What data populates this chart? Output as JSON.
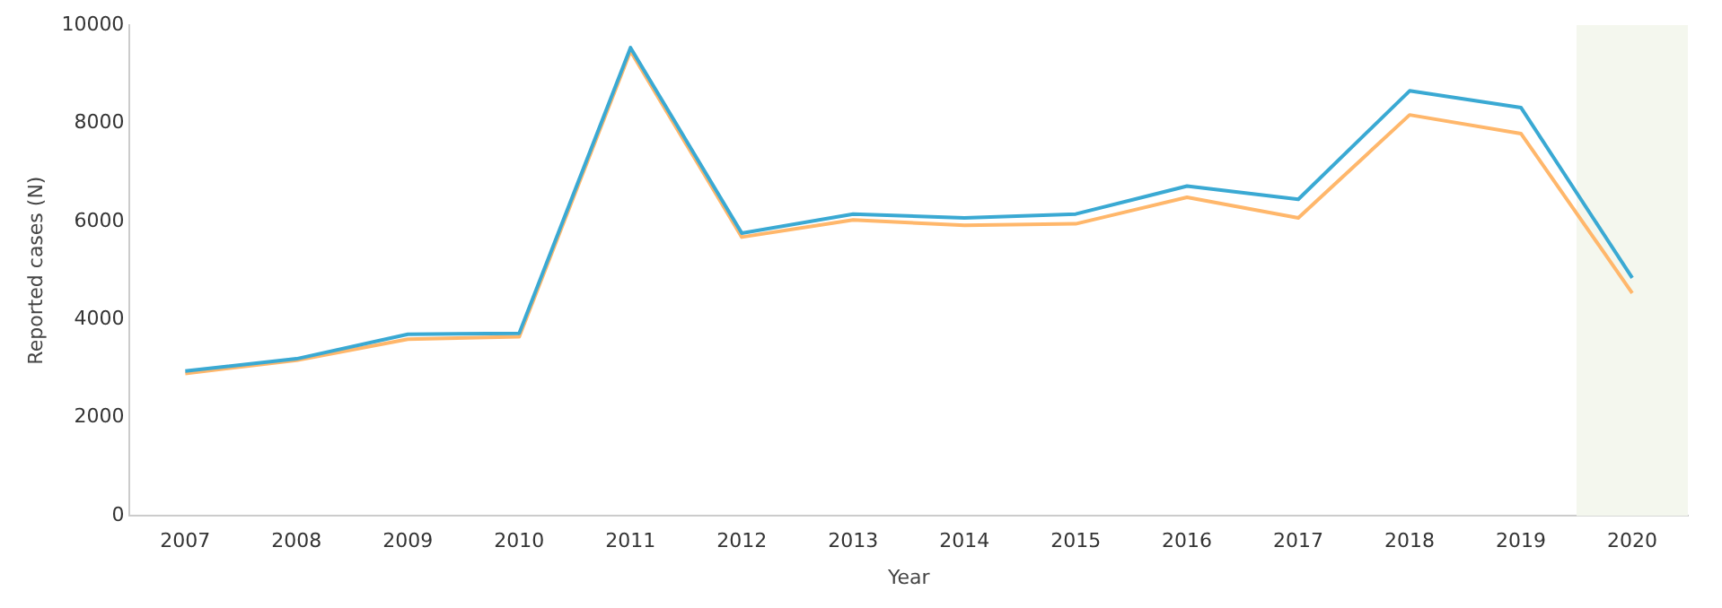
{
  "chart_data": {
    "type": "line",
    "xlabel": "Year",
    "ylabel": "Reported cases (N)",
    "categories": [
      "2007",
      "2008",
      "2009",
      "2010",
      "2011",
      "2012",
      "2013",
      "2014",
      "2015",
      "2016",
      "2017",
      "2018",
      "2019",
      "2020"
    ],
    "series": [
      {
        "color": "#3aa9d3",
        "values": [
          2950,
          3200,
          3700,
          3720,
          9540,
          5760,
          6150,
          6070,
          6150,
          6720,
          6450,
          8660,
          8320,
          4850
        ]
      },
      {
        "color": "#ffb76b",
        "values": [
          2900,
          3170,
          3600,
          3650,
          9470,
          5680,
          6030,
          5920,
          5950,
          6490,
          6070,
          8170,
          7790,
          4540
        ]
      }
    ],
    "ylim": [
      0,
      10000
    ],
    "yticks": [
      0,
      2000,
      4000,
      6000,
      8000,
      10000
    ],
    "bands": [
      {
        "axis": "x",
        "from": "2020",
        "to": "2020",
        "color": "#f4f7ee"
      }
    ],
    "grid": false,
    "legend": false,
    "marker": "none",
    "line_style": "solid"
  }
}
